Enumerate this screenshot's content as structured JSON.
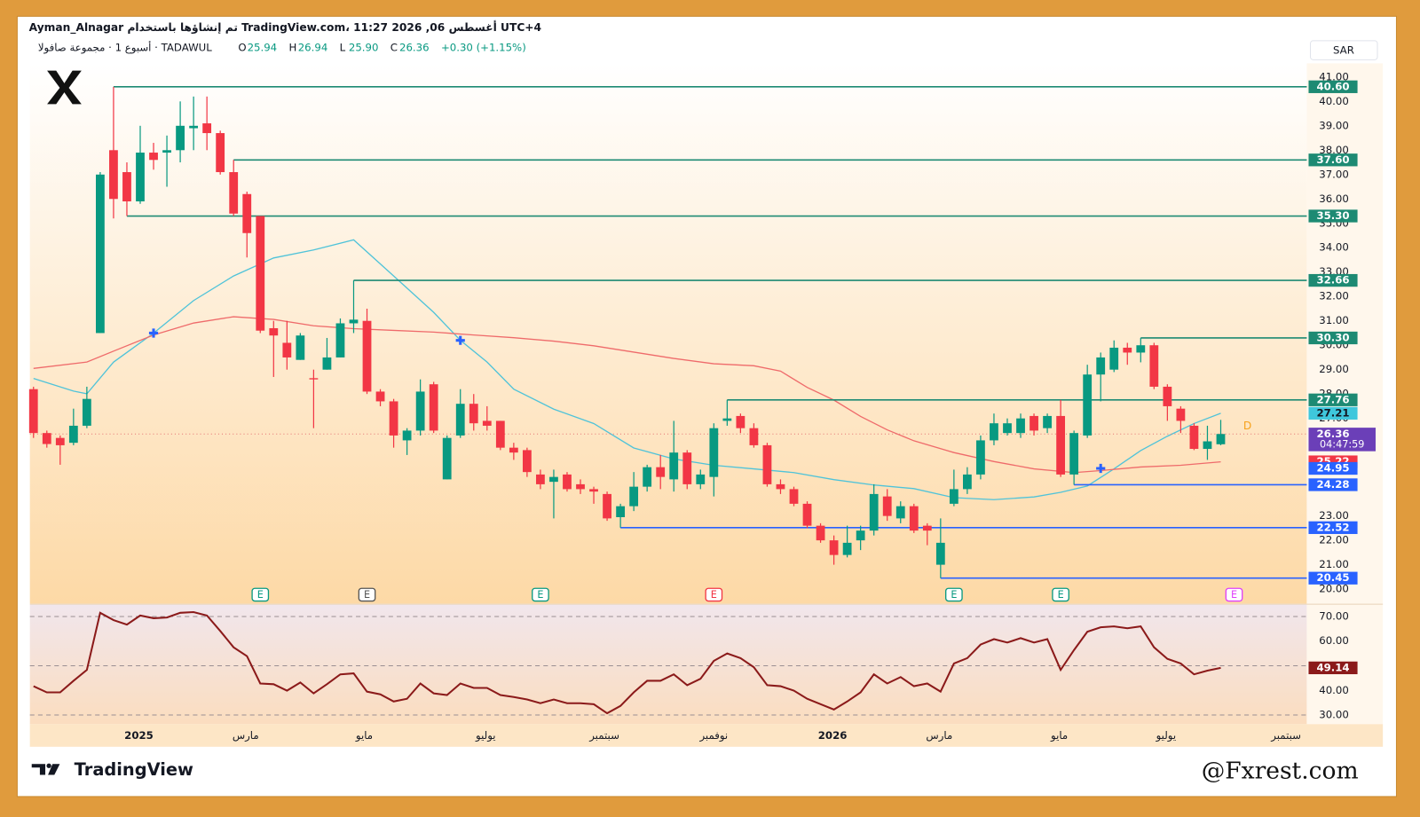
{
  "header": {
    "credit": "Ayman_Alnagar تم إنشاؤها باستخدام TradingView.com، 11:27 2026 ,06 أغسطس UTC+4",
    "symbol": "أسبوع 1 · مجموعة صافولا · TADAWUL",
    "ohlc": [
      [
        "O",
        "25.94"
      ],
      [
        "H",
        "26.94"
      ],
      [
        "L",
        "25.90"
      ],
      [
        "C",
        "26.36"
      ]
    ],
    "change": "+0.30 (+1.15%)",
    "currency": "SAR"
  },
  "footer": {
    "brand": "TradingView",
    "watermark": "@Fxrest.com"
  },
  "chart_data": [
    {
      "type": "candlestick",
      "up_color": "#089981",
      "down_color": "#f23645",
      "xlim": [
        -0.27,
        95.45
      ],
      "ylim": [
        19.4,
        41.56
      ],
      "yticks": [
        {
          "value": 41,
          "label": "41.00"
        },
        {
          "value": 40,
          "label": "40.00"
        },
        {
          "value": 39,
          "label": "39.00"
        },
        {
          "value": 38,
          "label": "38.00"
        },
        {
          "value": 37,
          "label": "37.00"
        },
        {
          "value": 36,
          "label": "36.00"
        },
        {
          "value": 35,
          "label": "35.00"
        },
        {
          "value": 34,
          "label": "34.00"
        },
        {
          "value": 33,
          "label": "33.00"
        },
        {
          "value": 32,
          "label": "32.00"
        },
        {
          "value": 31,
          "label": "31.00"
        },
        {
          "value": 30,
          "label": "30.00"
        },
        {
          "value": 29,
          "label": "29.00"
        },
        {
          "value": 28,
          "label": "28.00"
        },
        {
          "value": 27,
          "label": "27.00"
        },
        {
          "value": 23,
          "label": "23.00"
        },
        {
          "value": 22,
          "label": "22.00"
        },
        {
          "value": 21,
          "label": "21.00"
        },
        {
          "value": 20,
          "label": "20.00"
        }
      ],
      "open": [
        28.2,
        26.4,
        26.2,
        26.0,
        26.7,
        30.5,
        38.0,
        37.1,
        35.9,
        37.9,
        37.9,
        38.0,
        38.9,
        39.1,
        38.7,
        37.1,
        36.2,
        35.3,
        30.7,
        30.1,
        29.4,
        28.65,
        29.0,
        29.5,
        30.9,
        31.0,
        28.1,
        27.7,
        26.1,
        26.5,
        28.4,
        24.5,
        26.3,
        27.6,
        26.9,
        26.9,
        25.8,
        25.7,
        24.7,
        24.4,
        24.7,
        24.3,
        24.1,
        23.9,
        22.95,
        23.4,
        24.2,
        25.0,
        24.5,
        25.6,
        24.3,
        24.6,
        26.9,
        27.1,
        26.6,
        25.9,
        24.3,
        24.1,
        23.5,
        22.6,
        22.0,
        21.4,
        22.0,
        22.4,
        23.8,
        22.9,
        23.4,
        22.6,
        21.0,
        23.5,
        24.1,
        24.7,
        26.1,
        26.4,
        26.4,
        27.1,
        26.6,
        27.1,
        24.7,
        26.3,
        28.8,
        29.0,
        29.9,
        29.7,
        30.0,
        28.3,
        27.4,
        26.7,
        25.75,
        25.94
      ],
      "high": [
        28.3,
        26.5,
        26.3,
        27.4,
        28.3,
        37.1,
        40.6,
        37.5,
        39.0,
        38.3,
        38.6,
        40.0,
        40.2,
        40.2,
        38.8,
        37.6,
        36.3,
        35.3,
        31.0,
        31.0,
        30.5,
        29.0,
        30.3,
        31.1,
        32.66,
        31.5,
        28.2,
        27.8,
        26.6,
        28.6,
        28.5,
        26.3,
        28.2,
        28.0,
        27.5,
        26.9,
        26.0,
        25.8,
        24.9,
        24.9,
        24.8,
        24.5,
        24.2,
        24.0,
        23.5,
        24.8,
        25.1,
        25.5,
        26.9,
        25.7,
        24.9,
        26.8,
        27.76,
        27.2,
        26.8,
        26.0,
        24.5,
        24.2,
        23.6,
        22.7,
        22.2,
        22.6,
        22.6,
        24.3,
        24.1,
        23.6,
        23.5,
        22.7,
        22.9,
        24.9,
        25.0,
        26.3,
        27.2,
        27.0,
        27.2,
        27.2,
        27.2,
        27.76,
        26.5,
        29.2,
        29.7,
        30.2,
        30.1,
        30.3,
        30.1,
        28.4,
        27.5,
        26.8,
        26.7,
        26.94
      ],
      "low": [
        26.2,
        25.8,
        25.1,
        25.9,
        26.6,
        30.5,
        35.2,
        35.3,
        35.8,
        37.2,
        36.5,
        37.5,
        38.0,
        38.0,
        37.0,
        35.3,
        33.6,
        30.5,
        28.7,
        29.0,
        29.4,
        26.6,
        29.0,
        29.5,
        30.5,
        28.0,
        27.5,
        25.8,
        25.5,
        26.3,
        26.4,
        24.5,
        26.2,
        26.5,
        26.5,
        25.7,
        25.3,
        24.6,
        24.1,
        22.9,
        24.0,
        23.9,
        23.5,
        22.8,
        22.52,
        23.2,
        24.0,
        24.1,
        24.0,
        24.1,
        24.1,
        23.8,
        26.7,
        26.4,
        25.8,
        24.2,
        23.9,
        23.4,
        22.5,
        21.9,
        21.0,
        21.3,
        21.6,
        22.2,
        22.8,
        22.7,
        22.3,
        21.8,
        20.45,
        23.4,
        23.9,
        24.5,
        25.9,
        26.3,
        26.2,
        26.3,
        26.4,
        24.6,
        24.28,
        26.2,
        27.7,
        28.9,
        29.2,
        29.3,
        28.2,
        26.9,
        26.4,
        25.7,
        25.3,
        25.9
      ],
      "close": [
        26.4,
        25.95,
        25.9,
        26.7,
        27.8,
        37.0,
        36.0,
        35.9,
        37.9,
        37.6,
        38.0,
        39.0,
        39.0,
        38.7,
        37.1,
        35.4,
        34.6,
        30.6,
        30.4,
        29.5,
        30.4,
        28.6,
        29.5,
        30.9,
        31.05,
        28.1,
        27.7,
        26.3,
        26.5,
        28.1,
        26.5,
        26.2,
        27.6,
        26.8,
        26.7,
        25.8,
        25.6,
        24.8,
        24.3,
        24.6,
        24.1,
        24.1,
        24.0,
        22.9,
        23.4,
        24.2,
        25.0,
        24.6,
        25.6,
        24.3,
        24.7,
        26.6,
        27.0,
        26.6,
        25.9,
        24.3,
        24.1,
        23.5,
        22.6,
        22.0,
        21.4,
        21.9,
        22.4,
        23.9,
        23.0,
        23.4,
        22.4,
        22.4,
        21.9,
        24.1,
        24.7,
        26.1,
        26.8,
        26.8,
        27.0,
        26.5,
        27.1,
        24.7,
        26.4,
        28.8,
        29.5,
        29.9,
        29.7,
        30.0,
        28.3,
        27.5,
        26.9,
        25.75,
        26.06,
        26.36
      ],
      "moving_averages": [
        {
          "color": "#4fc3d9",
          "x": [
            0,
            3,
            4,
            6,
            9,
            12,
            15,
            18,
            21,
            24,
            27,
            30,
            32,
            34,
            36,
            39,
            42,
            45,
            48,
            51,
            54,
            57,
            60,
            63,
            66,
            69,
            72,
            75,
            77,
            79,
            81,
            83,
            85,
            87,
            89
          ],
          "values": [
            28.64,
            28.12,
            28.01,
            29.31,
            30.5,
            31.83,
            32.84,
            33.58,
            33.91,
            34.32,
            32.84,
            31.35,
            30.2,
            29.31,
            28.2,
            27.38,
            26.79,
            25.79,
            25.34,
            25.08,
            24.93,
            24.78,
            24.49,
            24.27,
            24.12,
            23.75,
            23.67,
            23.78,
            23.97,
            24.23,
            24.93,
            25.68,
            26.27,
            26.79,
            27.21
          ]
        },
        {
          "color": "#ef6b6b",
          "x": [
            0,
            4,
            6,
            9,
            12,
            15,
            18,
            21,
            24,
            27,
            30,
            33,
            36,
            39,
            42,
            45,
            48,
            51,
            54,
            56,
            58,
            60,
            62,
            64,
            66,
            69,
            72,
            75,
            78,
            80,
            83,
            86,
            89
          ],
          "values": [
            29.05,
            29.31,
            29.76,
            30.42,
            30.91,
            31.17,
            31.06,
            30.8,
            30.68,
            30.61,
            30.54,
            30.42,
            30.31,
            30.17,
            29.98,
            29.72,
            29.46,
            29.24,
            29.16,
            28.94,
            28.27,
            27.75,
            27.08,
            26.53,
            26.08,
            25.6,
            25.23,
            24.93,
            24.78,
            24.86,
            25.01,
            25.08,
            25.22
          ]
        }
      ],
      "levels": [
        {
          "value": 40.6,
          "label": "40.60",
          "start": 6,
          "color": "#1d8a73"
        },
        {
          "value": 37.6,
          "label": "37.60",
          "start": 15,
          "color": "#1d8a73"
        },
        {
          "value": 35.3,
          "label": "35.30",
          "start": 7,
          "color": "#1d8a73"
        },
        {
          "value": 32.66,
          "label": "32.66",
          "start": 24,
          "color": "#1d8a73"
        },
        {
          "value": 30.3,
          "label": "30.30",
          "start": 83,
          "color": "#1d8a73"
        },
        {
          "value": 27.76,
          "label": "27.76",
          "start": 52,
          "color": "#1d8a73"
        },
        {
          "value": 24.28,
          "label": "24.28",
          "start": 78,
          "color": "#2962ff"
        },
        {
          "value": 22.52,
          "label": "22.52",
          "start": 44,
          "color": "#2962ff"
        },
        {
          "value": 20.45,
          "label": "20.45",
          "start": 68,
          "color": "#2962ff"
        }
      ],
      "price_labels": [
        {
          "value": 27.21,
          "label": "27.21",
          "color": "#3fc7dc",
          "text_color": "#131722"
        },
        {
          "value": 26.36,
          "label": "26.36",
          "sub": "04:47:59",
          "color": "#6b3fb8",
          "text_color": "#ffffff"
        },
        {
          "value": 25.22,
          "label": "25.22",
          "color": "#f23645",
          "text_color": "#ffffff"
        },
        {
          "value": 24.95,
          "label": "24.95",
          "color": "#2962ff",
          "text_color": "#ffffff"
        }
      ],
      "crosses": [
        {
          "x": 9,
          "value": 30.5
        },
        {
          "x": 32,
          "value": 30.2
        },
        {
          "x": 80,
          "value": 24.95
        }
      ],
      "events": [
        {
          "x": 17,
          "label": "E",
          "color": "#089981"
        },
        {
          "x": 25,
          "label": "E",
          "color": "#555555"
        },
        {
          "x": 38,
          "label": "E",
          "color": "#089981"
        },
        {
          "x": 51,
          "label": "E",
          "color": "#f23645"
        },
        {
          "x": 69,
          "label": "E",
          "color": "#089981"
        },
        {
          "x": 77,
          "label": "E",
          "color": "#089981"
        },
        {
          "x": 90,
          "label": "E",
          "color": "#e040fb"
        }
      ],
      "dividend": {
        "x": 91,
        "label": "D",
        "color": "#f7a21b"
      }
    },
    {
      "type": "line",
      "color": "#8b1a1a",
      "xlim": [
        -0.27,
        95.45
      ],
      "ylim": [
        26.3,
        74.8
      ],
      "yticks": [
        {
          "value": 70,
          "label": "70.00"
        },
        {
          "value": 60,
          "label": "60.00"
        },
        {
          "value": 40,
          "label": "40.00"
        },
        {
          "value": 30,
          "label": "30.00"
        }
      ],
      "dashed_levels": [
        70,
        50,
        30
      ],
      "values": [
        41.7,
        39.2,
        39.2,
        43.9,
        48.3,
        71.5,
        68.5,
        66.7,
        70.4,
        69.3,
        69.6,
        71.5,
        71.8,
        70.4,
        64.1,
        57.5,
        53.9,
        42.8,
        42.5,
        39.9,
        43.2,
        38.8,
        42.5,
        46.5,
        46.9,
        39.5,
        38.4,
        35.5,
        36.6,
        42.8,
        38.8,
        38.1,
        42.8,
        41.0,
        41.0,
        38.1,
        37.3,
        36.3,
        34.8,
        36.3,
        34.8,
        34.8,
        34.4,
        30.7,
        33.7,
        39.2,
        43.9,
        43.9,
        46.5,
        42.1,
        44.7,
        52.0,
        55.0,
        53.1,
        49.4,
        42.1,
        41.7,
        39.9,
        36.6,
        34.4,
        32.2,
        35.5,
        39.2,
        46.5,
        42.8,
        45.4,
        41.7,
        42.8,
        39.5,
        50.9,
        53.1,
        58.6,
        60.8,
        59.4,
        61.2,
        59.4,
        60.8,
        48.3,
        56.4,
        63.8,
        65.6,
        66.0,
        65.2,
        66.0,
        57.5,
        52.8,
        50.9,
        46.5,
        48.0,
        49.14
      ],
      "last_label": "49.14",
      "xticks": [
        {
          "value": 7.9,
          "label": "2025"
        },
        {
          "value": 15.9,
          "label": "مارس"
        },
        {
          "value": 24.8,
          "label": "مايو"
        },
        {
          "value": 33.9,
          "label": "يوليو"
        },
        {
          "value": 42.8,
          "label": "سبتمبر"
        },
        {
          "value": 51.0,
          "label": "نوفمبر"
        },
        {
          "value": 59.9,
          "label": "2026"
        },
        {
          "value": 67.9,
          "label": "مارس"
        },
        {
          "value": 76.9,
          "label": "مايو"
        },
        {
          "value": 84.9,
          "label": "يوليو"
        },
        {
          "value": 93.9,
          "label": "سبتمبر"
        }
      ]
    }
  ]
}
